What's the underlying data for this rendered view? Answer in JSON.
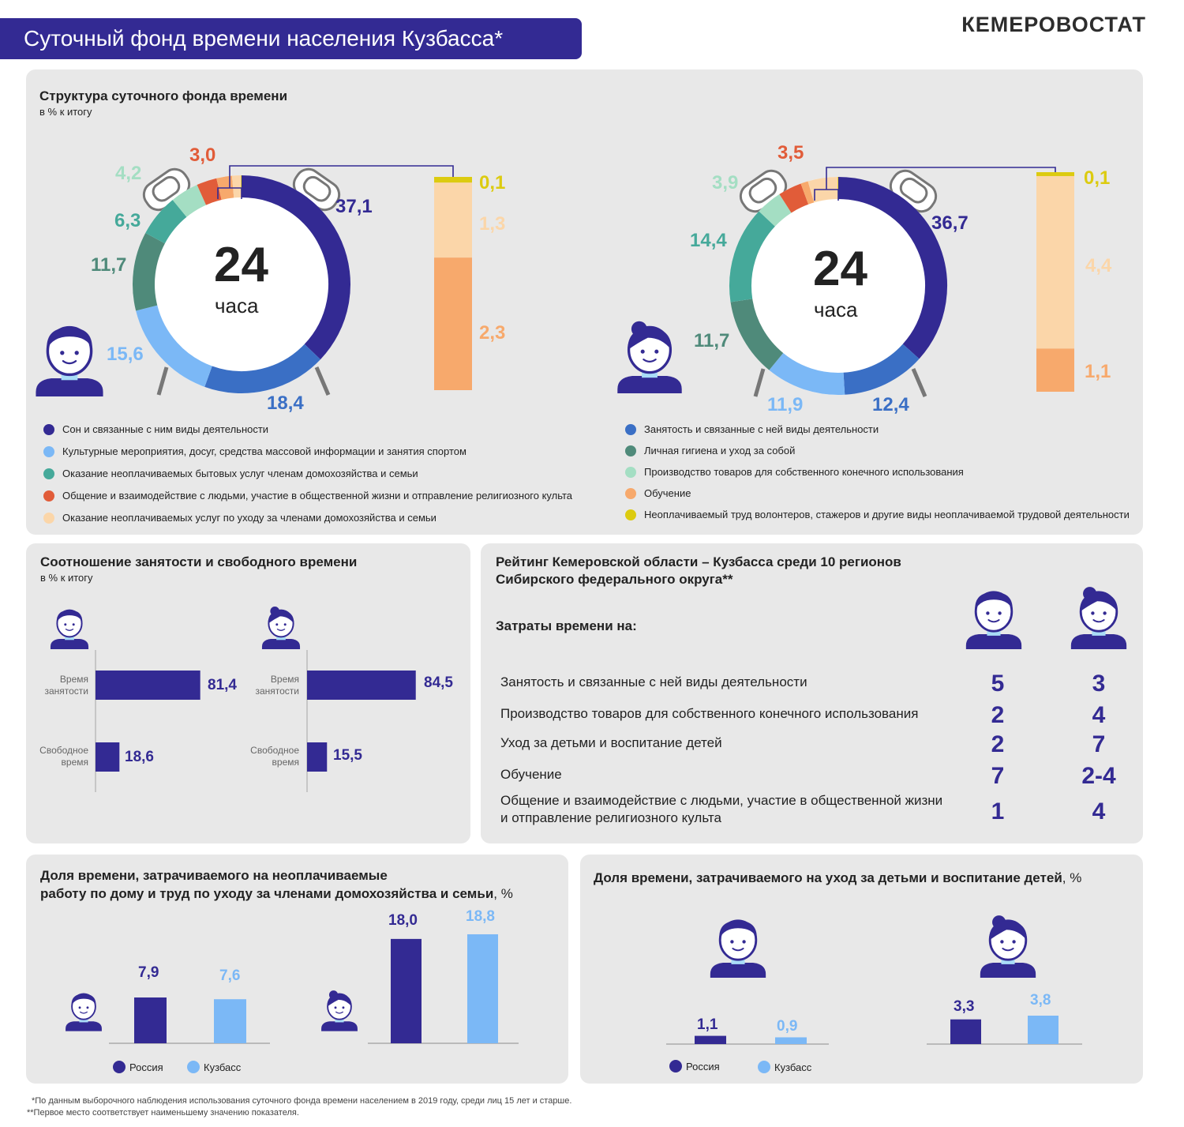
{
  "header": {
    "title": "Суточный фонд времени населения Кузбасса*",
    "brand": "КЕМЕРОВОСТАТ"
  },
  "colors": {
    "sleep": "#332a93",
    "employment": "#3a6fc5",
    "culture": "#7bb8f6",
    "hygiene": "#4f8a7a",
    "household": "#45a99a",
    "production": "#a4dec3",
    "communication": "#e15c39",
    "study": "#f7a96c",
    "care": "#fbd6a9",
    "volunteer": "#dccb10",
    "russia": "#332a93",
    "kuzbass": "#7bb8f6"
  },
  "structure": {
    "title": "Структура суточного фонда времени",
    "subtitle": "в % к итогу",
    "center_number": "24",
    "center_unit": "часа",
    "legend_left": [
      {
        "key": "sleep",
        "label": "Сон и связанные с ним виды деятельности"
      },
      {
        "key": "culture",
        "label": "Культурные мероприятия, досуг, средства массовой информации и  занятия спортом"
      },
      {
        "key": "household",
        "label": "Оказание неоплачиваемых бытовых услуг членам домохозяйства и семьи"
      },
      {
        "key": "communication",
        "label": "Общение и взаимодействие с людьми, участие в общественной жизни и отправление религиозного культа"
      },
      {
        "key": "care",
        "label": "Оказание неоплачиваемых услуг по уходу за членами домохозяйства и семьи"
      }
    ],
    "legend_right": [
      {
        "key": "employment",
        "label": "Занятость и связанные с ней виды деятельности"
      },
      {
        "key": "hygiene",
        "label": "Личная гигиена и уход за собой"
      },
      {
        "key": "production",
        "label": "Производство товаров для собственного конечного использования"
      },
      {
        "key": "study",
        "label": "Обучение"
      },
      {
        "key": "volunteer",
        "label": "Неоплачиваемый труд волонтеров, стажеров и другие виды неоплачиваемой трудовой деятельности"
      }
    ],
    "men": {
      "sleep": "37,1",
      "employment": "18,4",
      "culture": "15,6",
      "hygiene": "11,7",
      "household": "6,3",
      "production": "4,2",
      "communication": "3,0",
      "volunteer": "0,1",
      "care": "1,3",
      "study": "2,3"
    },
    "women": {
      "sleep": "36,7",
      "employment": "12,4",
      "culture": "11,9",
      "hygiene": "11,7",
      "household": "14,4",
      "production": "3,9",
      "communication": "3,5",
      "volunteer": "0,1",
      "care": "4,4",
      "study": "1,1"
    }
  },
  "chart_data": [
    {
      "type": "pie",
      "title": "Структура суточного фонда времени",
      "subtitle": "в % к итогу",
      "categories": [
        "Сон и связанные с ним виды деятельности",
        "Занятость и связанные с ней виды деятельности",
        "Культурные мероприятия, досуг, средства массовой информации и  занятия спортом",
        "Личная гигиена и уход за собой",
        "Оказание неоплачиваемых бытовых услуг членам домохозяйства и семьи",
        "Производство товаров для собственного конечного использования",
        "Общение и взаимодействие с людьми, участие в общественной жизни и отправление религиозного культа",
        "Неоплачиваемый труд волонтеров, стажеров и другие виды неоплачиваемой трудовой деятельности",
        "Оказание неоплачиваемых услуг по уходу за членами домохозяйства и семьи",
        "Обучение"
      ],
      "values": [
        37.1,
        18.4,
        15.6,
        11.7,
        6.3,
        4.2,
        3.0,
        0.1,
        1.3,
        2.3
      ]
    },
    {
      "type": "pie",
      "title": "Структура суточного фонда времени",
      "subtitle": "в % к итогу",
      "categories": [
        "Сон и связанные с ним виды деятельности",
        "Занятость и связанные с ней виды деятельности",
        "Культурные мероприятия, досуг, средства массовой информации и  занятия спортом",
        "Личная гигиена и уход за собой",
        "Оказание неоплачиваемых бытовых услуг членам домохозяйства и семьи",
        "Производство товаров для собственного конечного использования",
        "Общение и взаимодействие с людьми, участие в общественной жизни и отправление религиозного культа",
        "Неоплачиваемый труд волонтеров, стажеров и другие виды неоплачиваемой трудовой деятельности",
        "Оказание неоплачиваемых услуг по уходу за членами домохозяйства и семьи",
        "Обучение"
      ],
      "values": [
        36.7,
        12.4,
        11.9,
        11.7,
        14.4,
        3.9,
        3.5,
        0.1,
        4.4,
        1.1
      ]
    },
    {
      "type": "bar",
      "title": "Соотношение занятости и свободного времени",
      "subtitle": "в % к итогу",
      "categories": [
        "Время занятости",
        "Свободное время"
      ],
      "groups": [
        {
          "values": [
            81.4,
            18.6
          ],
          "labels": [
            "81,4",
            "18,6"
          ]
        },
        {
          "values": [
            84.5,
            15.5
          ],
          "labels": [
            "84,5",
            "15,5"
          ]
        }
      ]
    },
    {
      "type": "bar",
      "title": "Доля времени, затрачиваемого на неоплачиваемые работу по дому и труд по уходу за членами домохозяйства и семьи",
      "unit": "%",
      "series": [
        {
          "name": "Россия",
          "values": [
            7.9,
            18.0
          ],
          "labels": [
            "7,9",
            "18,0"
          ]
        },
        {
          "name": "Кузбасс",
          "values": [
            7.6,
            18.8
          ],
          "labels": [
            "7,6",
            "18,8"
          ]
        }
      ]
    },
    {
      "type": "bar",
      "title": "Доля времени, затрачиваемого на уход за детьми и воспитание детей",
      "unit": "%",
      "series": [
        {
          "name": "Россия",
          "values": [
            1.1,
            3.3
          ],
          "labels": [
            "1,1",
            "3,3"
          ]
        },
        {
          "name": "Кузбасс",
          "values": [
            0.9,
            3.8
          ],
          "labels": [
            "0,9",
            "3,8"
          ]
        }
      ]
    }
  ],
  "ratio": {
    "title": "Соотношение занятости и свободного времени",
    "subtitle": "в % к итогу",
    "label_work": "Время занятости",
    "label_free": "Свободное время",
    "men": {
      "work": 81.4,
      "free": 18.6,
      "work_label": "81,4",
      "free_label": "18,6"
    },
    "women": {
      "work": 84.5,
      "free": 15.5,
      "work_label": "84,5",
      "free_label": "15,5"
    }
  },
  "rating": {
    "title_line1": "Рейтинг Кемеровской области – Кузбасса среди 10 регионов",
    "title_line2": "Сибирского федерального округа**",
    "subheader": "Затраты времени на:",
    "rows": [
      {
        "label": "Занятость и связанные с ней виды деятельности",
        "men": "5",
        "women": "3"
      },
      {
        "label": "Производство товаров для собственного конечного использования",
        "men": "2",
        "women": "4"
      },
      {
        "label": "Уход за детьми и воспитание детей",
        "men": "2",
        "women": "7"
      },
      {
        "label": "Обучение",
        "men": "7",
        "women": "2-4"
      },
      {
        "label": "Общение и взаимодействие с людьми, участие в общественной жизни и отправление религиозного культа",
        "men": "1",
        "women": "4"
      }
    ]
  },
  "housework": {
    "title_line1": "Доля времени, затрачиваемого на неоплачиваемые",
    "title_line2": "работу по дому и труд по уходу за членами домохозяйства и семьи",
    "unit": ", %",
    "men": {
      "russia": 7.9,
      "kuzbass": 7.6,
      "russia_label": "7,9",
      "kuzbass_label": "7,6"
    },
    "women": {
      "russia": 18.0,
      "kuzbass": 18.8,
      "russia_label": "18,0",
      "kuzbass_label": "18,8"
    },
    "legend_russia": "Россия",
    "legend_kuzbass": "Кузбасс"
  },
  "childcare": {
    "title": "Доля времени, затрачиваемого на уход за детьми и воспитание детей",
    "unit": ", %",
    "men": {
      "russia": 1.1,
      "kuzbass": 0.9,
      "russia_label": "1,1",
      "kuzbass_label": "0,9"
    },
    "women": {
      "russia": 3.3,
      "kuzbass": 3.8,
      "russia_label": "3,3",
      "kuzbass_label": "3,8"
    },
    "legend_russia": "Россия",
    "legend_kuzbass": "Кузбасс"
  },
  "footnotes": {
    "note1": "*По данным выборочного наблюдения использования суточного фонда времени населением в 2019 году, среди лиц 15 лет и старше.",
    "note2": "**Первое место соответствует наименьшему значению показателя."
  }
}
